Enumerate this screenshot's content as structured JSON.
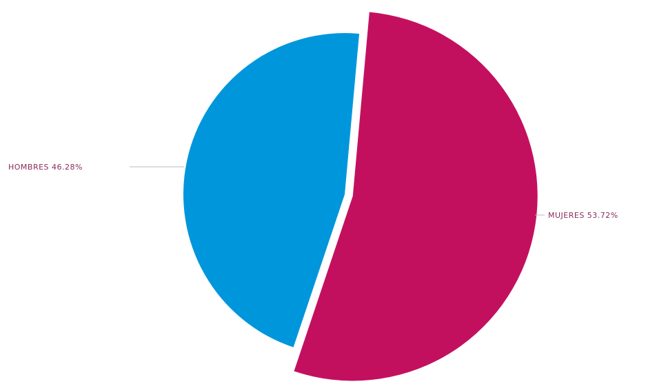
{
  "chart_data": {
    "type": "pie",
    "title": "",
    "slices": [
      {
        "label": "HOMBRES",
        "value": 46.28,
        "value_text": "46.28%",
        "color": "#0096dc",
        "exploded": false
      },
      {
        "label": "MUJERES",
        "value": 53.72,
        "value_text": "53.72%",
        "color": "#c3105e",
        "exploded": true
      }
    ],
    "label_color": "#8a2a5a",
    "legend": "none",
    "data_labels": "outside with leader lines"
  }
}
